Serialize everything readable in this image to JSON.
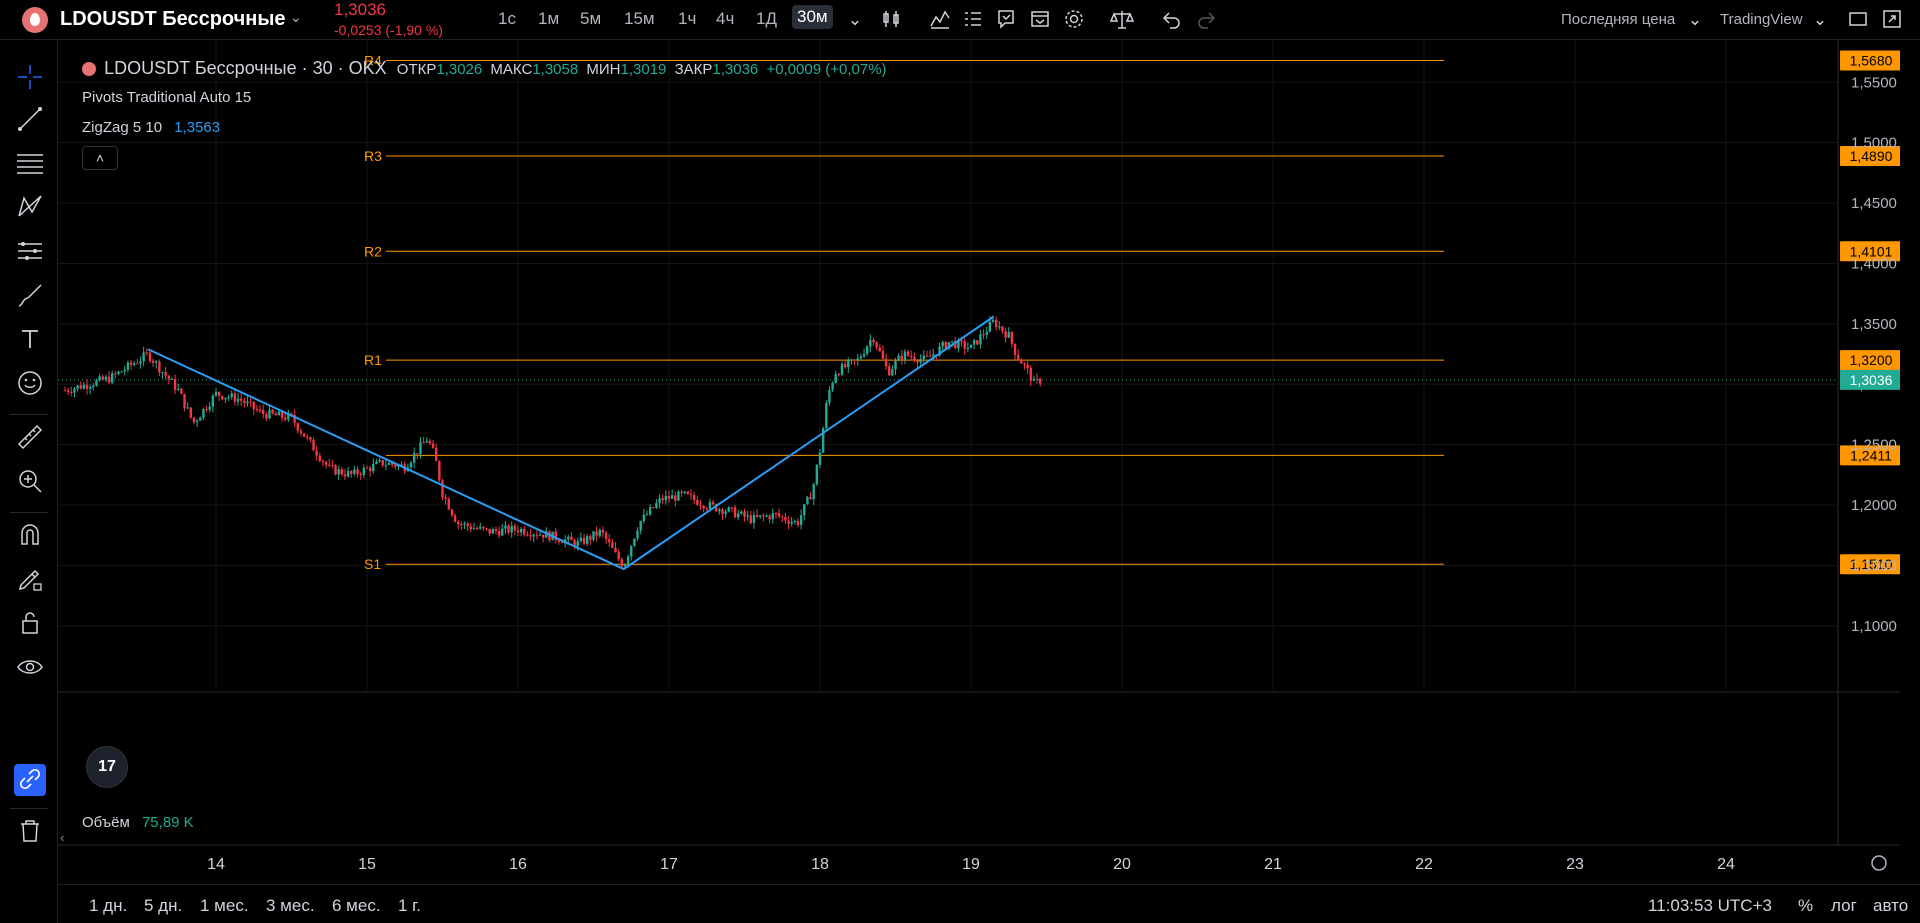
{
  "header": {
    "symbol": "LDOUSDT Бессрочные",
    "last_price": "1,3036",
    "change": "-0,0253 (-1,90 %)",
    "intervals": [
      "1с",
      "1м",
      "5м",
      "15м",
      "1ч",
      "4ч",
      "1Д",
      "30м"
    ],
    "active_interval": "30м",
    "price_type": "Последняя цена",
    "brand": "TradingView",
    "icons": [
      "candles-icon",
      "indicators-icon",
      "templates-icon",
      "alert-icon",
      "replay-icon",
      "settings-icon",
      "compare-icon",
      "undo-icon",
      "redo-icon",
      "layout-icon",
      "fullscreen-icon"
    ]
  },
  "legend": {
    "title": "LDOUSDT Бессрочные · 30 · OKX",
    "open_label": "ОТКР",
    "open": "1,3026",
    "high_label": "МАКС",
    "high": "1,3058",
    "low_label": "МИН",
    "low": "1,3019",
    "close_label": "ЗАКР",
    "close": "1,3036",
    "delta": "+0,0009 (+0,07%)",
    "pivots": "Pivots Traditional Auto 15",
    "zigzag_label": "ZigZag 5 10",
    "zigzag_value": "1,3563",
    "collapse": "˄"
  },
  "volume": {
    "label": "Объём",
    "value": "75,89 K"
  },
  "bottom": {
    "ranges": [
      "1 дн.",
      "5 дн.",
      "1 мес.",
      "3 мес.",
      "6 мес.",
      "1 г."
    ],
    "clock": "11:03:53 UTC+3",
    "percent": "%",
    "log": "лог",
    "auto": "авто"
  },
  "colors": {
    "bg": "#000000",
    "up": "#22ab94",
    "down": "#f23645",
    "pivot": "#ff9800",
    "zigzag": "#2a9df4",
    "current": "#22ab94"
  },
  "chart_data": {
    "type": "candlestick",
    "x_ticks": [
      "14",
      "15",
      "16",
      "17",
      "18",
      "19",
      "20",
      "21",
      "22",
      "23",
      "24"
    ],
    "y_ticks": [
      "1,1000",
      "1,1500",
      "1,2000",
      "1,2500",
      "1,3000",
      "1,3500",
      "1,4000",
      "1,4500",
      "1,5000",
      "1,5500"
    ],
    "ylim": [
      1.08,
      1.585
    ],
    "pivots": [
      {
        "label": "R4",
        "value": 1.568,
        "tag": "1,5680"
      },
      {
        "label": "R3",
        "value": 1.489,
        "tag": "1,4890"
      },
      {
        "label": "R2",
        "value": 1.4101,
        "tag": "1,4101"
      },
      {
        "label": "R1",
        "value": 1.32,
        "tag": "1,3200"
      },
      {
        "label": "",
        "value": 1.2411,
        "tag": "1,2411"
      },
      {
        "label": "S1",
        "value": 1.151,
        "tag": "1,1510"
      }
    ],
    "current_price": {
      "value": 1.3036,
      "tag": "1,3036"
    },
    "zigzag": [
      {
        "day": 13.55,
        "price": 1.329
      },
      {
        "day": 16.7,
        "price": 1.147
      },
      {
        "day": 19.15,
        "price": 1.356
      }
    ],
    "price_path": [
      [
        13.0,
        1.295
      ],
      [
        13.3,
        1.305
      ],
      [
        13.55,
        1.325
      ],
      [
        13.75,
        1.295
      ],
      [
        13.85,
        1.268
      ],
      [
        14.0,
        1.292
      ],
      [
        14.15,
        1.288
      ],
      [
        14.3,
        1.276
      ],
      [
        14.5,
        1.272
      ],
      [
        14.6,
        1.255
      ],
      [
        14.75,
        1.23
      ],
      [
        14.9,
        1.225
      ],
      [
        15.1,
        1.235
      ],
      [
        15.25,
        1.232
      ],
      [
        15.4,
        1.255
      ],
      [
        15.45,
        1.24
      ],
      [
        15.5,
        1.21
      ],
      [
        15.6,
        1.185
      ],
      [
        15.8,
        1.178
      ],
      [
        16.0,
        1.18
      ],
      [
        16.2,
        1.175
      ],
      [
        16.4,
        1.168
      ],
      [
        16.55,
        1.178
      ],
      [
        16.65,
        1.158
      ],
      [
        16.7,
        1.15
      ],
      [
        16.8,
        1.185
      ],
      [
        16.95,
        1.205
      ],
      [
        17.1,
        1.208
      ],
      [
        17.25,
        1.2
      ],
      [
        17.4,
        1.195
      ],
      [
        17.55,
        1.188
      ],
      [
        17.7,
        1.192
      ],
      [
        17.85,
        1.185
      ],
      [
        17.95,
        1.212
      ],
      [
        18.0,
        1.245
      ],
      [
        18.05,
        1.29
      ],
      [
        18.1,
        1.31
      ],
      [
        18.25,
        1.32
      ],
      [
        18.35,
        1.34
      ],
      [
        18.45,
        1.31
      ],
      [
        18.55,
        1.325
      ],
      [
        18.7,
        1.32
      ],
      [
        18.85,
        1.335
      ],
      [
        19.0,
        1.33
      ],
      [
        19.15,
        1.352
      ],
      [
        19.25,
        1.34
      ],
      [
        19.3,
        1.325
      ],
      [
        19.38,
        1.31
      ],
      [
        19.42,
        1.3
      ],
      [
        19.46,
        1.3036
      ]
    ]
  }
}
